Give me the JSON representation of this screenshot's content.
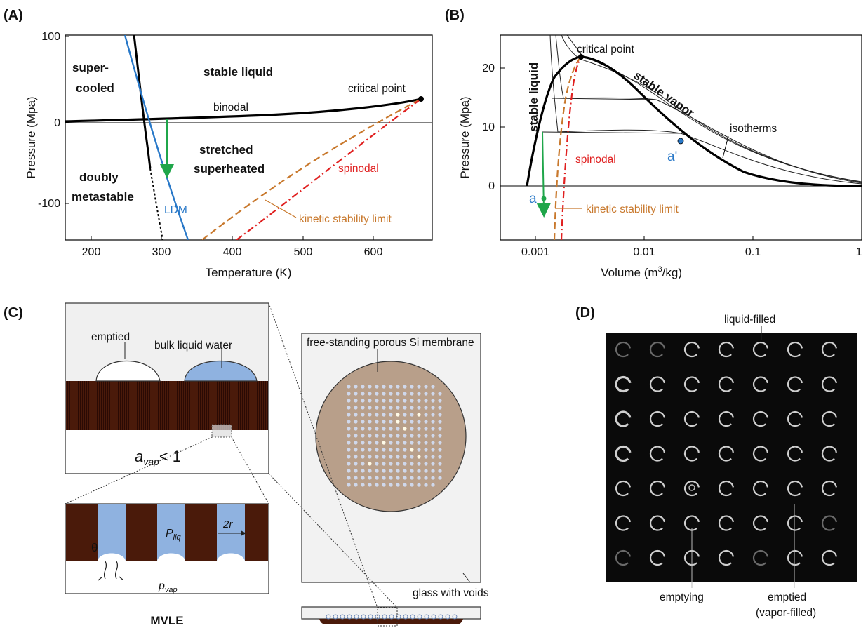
{
  "panels": {
    "a": {
      "label": "(A)",
      "x_label": "Temperature (K)",
      "y_label": "Pressure (Mpa)",
      "x_ticks": [
        "200",
        "300",
        "400",
        "500",
        "600"
      ],
      "y_ticks": [
        "100",
        "0",
        "-100"
      ],
      "regions": {
        "supercooled_1": "super-",
        "supercooled_2": "cooled",
        "stable_liquid": "stable liquid",
        "stretched_1": "stretched",
        "stretched_2": "superheated",
        "doubly_1": "doubly",
        "doubly_2": "metastable"
      },
      "curves": {
        "binodal": "binodal",
        "critical_point": "critical point",
        "spinodal": "spinodal",
        "ldm": "LDM",
        "kinetic": "kinetic stability limit"
      }
    },
    "b": {
      "label": "(B)",
      "x_label_main": "Volume (m",
      "x_label_sup": "3",
      "x_label_end": "/kg)",
      "y_label": "Pressure (Mpa)",
      "x_ticks": [
        "0.001",
        "0.01",
        "0.1",
        "1"
      ],
      "y_ticks": [
        "20",
        "10",
        "0"
      ],
      "labels": {
        "stable_liquid": "stable liquid",
        "stable_vapor": "stable vapor",
        "critical_point": "critical point",
        "isotherms": "isotherms",
        "spinodal": "spinodal",
        "kinetic": "kinetic stability limit",
        "a": "a",
        "a_prime": "a'"
      }
    },
    "c": {
      "label": "(C)",
      "emptied": "emptied",
      "bulk_water": "bulk liquid water",
      "activity_main": "a",
      "activity_sub": "vap",
      "activity_rel": "< 1",
      "theta": "θ",
      "p_liq_main": "P",
      "p_liq_sub": "liq",
      "two_r": "2r",
      "p_vap_main": "p",
      "p_vap_sub": "vap",
      "mvle": "MVLE",
      "membrane": "free-standing porous Si membrane",
      "glass": "glass with voids"
    },
    "d": {
      "label": "(D)",
      "liquid_filled": "liquid-filled",
      "emptying": "emptying",
      "emptied_1": "emptied",
      "emptied_2": "(vapor-filled)"
    }
  },
  "colors": {
    "binodal": "#000000",
    "ldm": "#2878c8",
    "spinodal": "#e02020",
    "kinetic": "#c8782c",
    "arrow": "#1fa64a",
    "water": "#8fb2e0",
    "silicon": "#4a1a0a",
    "membrane": "#b89f8a"
  }
}
